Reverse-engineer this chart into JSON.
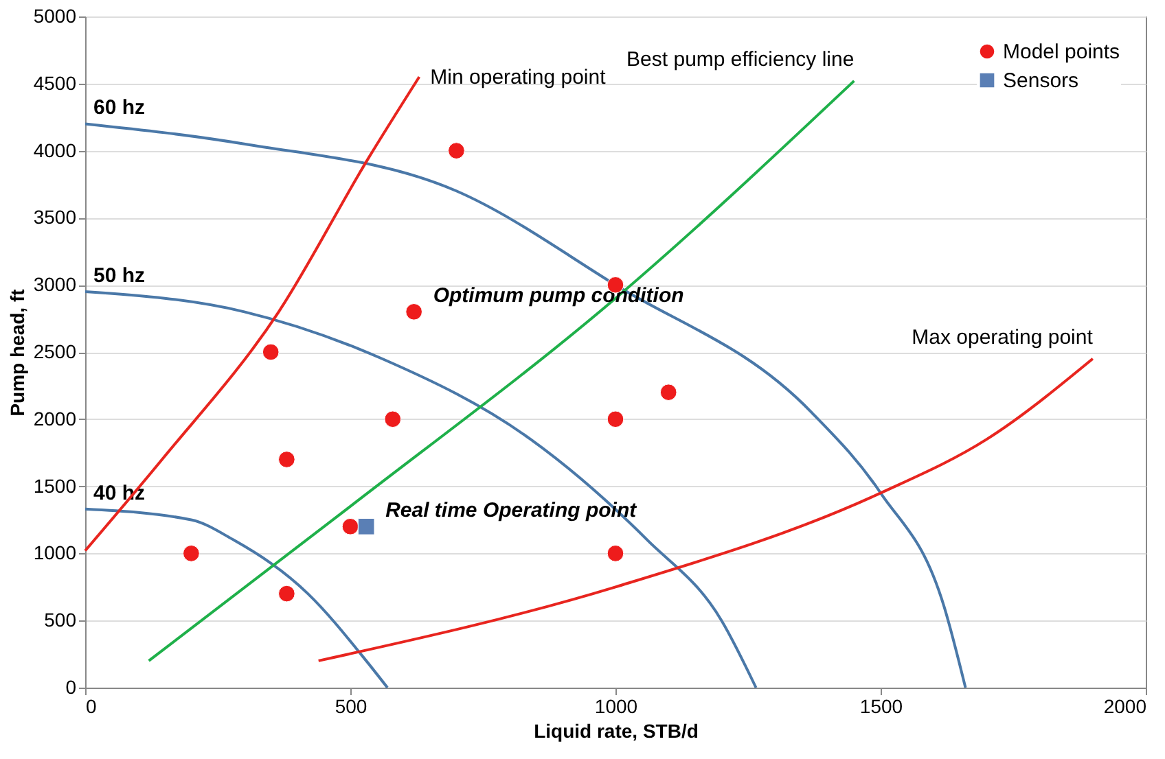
{
  "chart_data": {
    "type": "scatter",
    "xlabel": "Liquid rate, STB/d",
    "ylabel": "Pump head, ft",
    "xlim": [
      0,
      2000
    ],
    "ylim": [
      0,
      5000
    ],
    "xticks": [
      0,
      500,
      1000,
      1500,
      2000
    ],
    "yticks": [
      0,
      500,
      1000,
      1500,
      2000,
      2500,
      3000,
      3500,
      4000,
      4500,
      5000
    ],
    "grid": "y",
    "legend": "top right",
    "series": [
      {
        "name": "60 hz",
        "type": "line",
        "color": "#4a78a8",
        "x": [
          0,
          300,
          700,
          1000,
          1370,
          1500,
          1620,
          1660
        ],
        "values": [
          4200,
          4050,
          3700,
          3000,
          2050,
          1450,
          600,
          0
        ]
      },
      {
        "name": "50 hz",
        "type": "line",
        "color": "#4a78a8",
        "x": [
          0,
          300,
          560,
          840,
          1060,
          1200,
          1265
        ],
        "values": [
          2950,
          2800,
          2450,
          1850,
          1100,
          500,
          0
        ]
      },
      {
        "name": "40 hz",
        "type": "line",
        "color": "#4a78a8",
        "x": [
          0,
          200,
          280,
          420,
          530,
          570
        ],
        "values": [
          1330,
          1250,
          1100,
          700,
          200,
          0
        ]
      },
      {
        "name": "Min operating point",
        "type": "line",
        "color": "#e8251f",
        "x": [
          0,
          145,
          365,
          535,
          630
        ],
        "values": [
          1020,
          1700,
          2800,
          3950,
          4550
        ]
      },
      {
        "name": "Best pump efficiency line",
        "type": "line",
        "color": "#1fb04a",
        "x": [
          120,
          500,
          1000,
          1450
        ],
        "values": [
          200,
          1350,
          2900,
          4520
        ]
      },
      {
        "name": "Max operating point",
        "type": "line",
        "color": "#e8251f",
        "x": [
          440,
          1000,
          1500,
          1700,
          1900
        ],
        "values": [
          200,
          750,
          1450,
          1850,
          2450
        ]
      },
      {
        "name": "Model points",
        "marker": "circle",
        "color": "#ee1c1c",
        "x": [
          200,
          380,
          380,
          350,
          500,
          580,
          620,
          700,
          1000,
          1000,
          1100,
          1000
        ],
        "values": [
          1000,
          700,
          1700,
          2500,
          1200,
          2000,
          2800,
          4000,
          3000,
          2000,
          2200,
          1000
        ]
      },
      {
        "name": "Sensors",
        "marker": "square",
        "color": "#5a7fb5",
        "x": [
          530
        ],
        "values": [
          1200
        ]
      }
    ],
    "annotations": [
      {
        "text": "Optimum pump condition",
        "x": 620,
        "y": 2800
      },
      {
        "text": "Real time Operating point",
        "x": 530,
        "y": 1200
      }
    ]
  }
}
